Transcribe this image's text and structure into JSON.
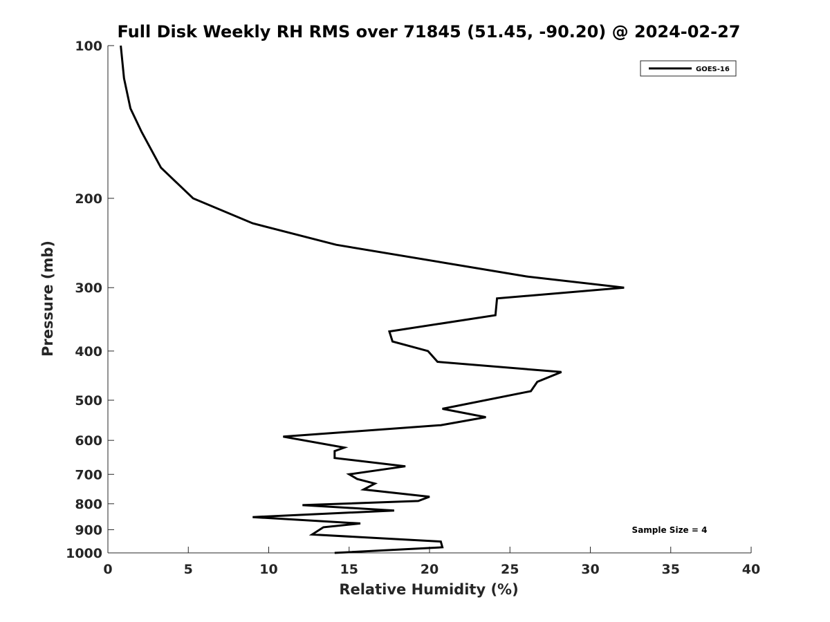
{
  "chart_data": {
    "type": "line",
    "title": "Full Disk Weekly RH RMS over 71845 (51.45, -90.20) @ 2024-02-27",
    "xlabel": "Relative Humidity (%)",
    "ylabel": "Pressure (mb)",
    "xlim": [
      0,
      40
    ],
    "ylim": [
      100,
      1000
    ],
    "yscale": "log",
    "y_reversed": true,
    "xticks": [
      0,
      5,
      10,
      15,
      20,
      25,
      30,
      35,
      40
    ],
    "yticks": [
      100,
      200,
      300,
      400,
      500,
      600,
      700,
      800,
      900,
      1000
    ],
    "grid": false,
    "legend": {
      "position": "top-right",
      "entries": [
        "GOES-16"
      ]
    },
    "annotation": "Sample Size = 4",
    "series": [
      {
        "name": "GOES-16",
        "color": "#000000",
        "x": [
          0.8,
          1.0,
          1.4,
          2.1,
          3.3,
          5.3,
          9.0,
          14.2,
          26.0,
          32.1,
          24.2,
          24.1,
          17.5,
          17.7,
          19.9,
          20.5,
          28.2,
          26.7,
          26.3,
          20.8,
          23.5,
          20.7,
          10.9,
          14.7,
          14.1,
          14.1,
          18.5,
          15.0,
          15.5,
          16.6,
          15.9,
          20.0,
          19.3,
          12.1,
          17.8,
          9.0,
          15.7,
          13.4,
          12.7,
          20.7,
          20.8,
          14.1
        ],
        "y": [
          100,
          116,
          133,
          148,
          174,
          200,
          224,
          247,
          285,
          300,
          315,
          340,
          366,
          383,
          400,
          420,
          440,
          460,
          480,
          520,
          540,
          560,
          590,
          620,
          630,
          650,
          675,
          700,
          715,
          730,
          750,
          775,
          790,
          805,
          825,
          850,
          875,
          890,
          920,
          950,
          975,
          1000
        ]
      }
    ]
  }
}
